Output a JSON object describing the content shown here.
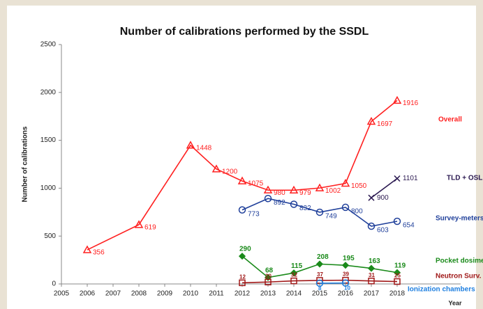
{
  "chart_data": {
    "type": "line",
    "title": "Number of calibrations performed by the SSDL",
    "y_label": "Number of calibrations",
    "x_label": "Year",
    "x": [
      2006,
      2008,
      2010,
      2011,
      2012,
      2013,
      2014,
      2015,
      2016,
      2017,
      2018
    ],
    "xlim": [
      2005,
      2021
    ],
    "xticks": [
      2005,
      2006,
      2007,
      2008,
      2009,
      2010,
      2011,
      2012,
      2013,
      2014,
      2015,
      2016,
      2017,
      2018
    ],
    "ylim": [
      0,
      2500
    ],
    "yticks": [
      0,
      500,
      1000,
      1500,
      2000,
      2500
    ],
    "series": [
      {
        "name": "Overall",
        "color": "#ff2020",
        "marker": "triangle",
        "values": [
          356,
          619,
          1448,
          1200,
          1075,
          980,
          979,
          1002,
          1050,
          1697,
          1916
        ]
      },
      {
        "name": "TLD + OSL",
        "color": "#2a1850",
        "marker": "x",
        "values": [
          null,
          null,
          null,
          null,
          null,
          null,
          null,
          null,
          null,
          900,
          1101
        ]
      },
      {
        "name": "Survey-meters",
        "color": "#1f3f9a",
        "marker": "circle",
        "values": [
          null,
          null,
          null,
          null,
          773,
          892,
          832,
          749,
          800,
          603,
          654
        ]
      },
      {
        "name": "Pocket dosimeters",
        "color": "#1a8a1a",
        "marker": "diamond",
        "values": [
          null,
          null,
          null,
          null,
          290,
          68,
          115,
          208,
          195,
          163,
          119
        ]
      },
      {
        "name": "Neutron Surv.",
        "color": "#a01818",
        "marker": "square",
        "values": [
          null,
          null,
          null,
          null,
          12,
          20,
          32,
          37,
          39,
          31,
          25
        ]
      },
      {
        "name": "Ionization chambers",
        "color": "#1e7fe0",
        "marker": "circle",
        "values": [
          null,
          null,
          null,
          null,
          null,
          null,
          null,
          8,
          10,
          null,
          null
        ]
      }
    ]
  }
}
